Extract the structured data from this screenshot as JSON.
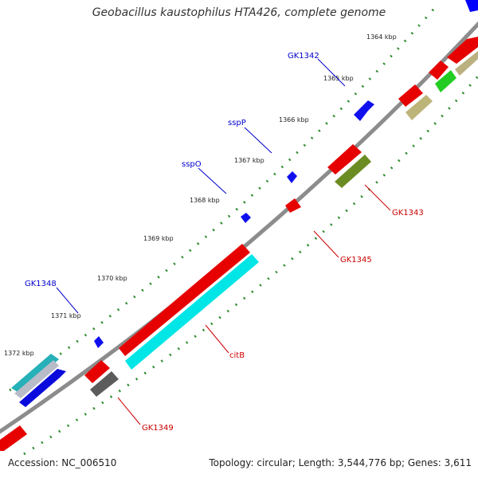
{
  "title": "Geobacillus kaustophilus HTA426, complete genome",
  "footer": {
    "accession": "Accession: NC_006510",
    "genome_info": "Topology: circular; Length: 3,544,776 bp; Genes: 3,611"
  },
  "colors": {
    "backbone": "#8c8c8c",
    "tick_dots": "#2e8b2e",
    "label_forward": "#0000cc",
    "label_reverse": "#cc0000"
  },
  "tick_labels": [
    "1364 kbp",
    "1365 kbp",
    "1366 kbp",
    "1367 kbp",
    "1368 kbp",
    "1369 kbp",
    "1370 kbp",
    "1371 kbp",
    "1372 kbp"
  ],
  "gene_labels": {
    "gk1342": "GK1342",
    "sspp": "sspP",
    "sspo": "sspO",
    "gk1348": "GK1348",
    "gk1343": "GK1343",
    "gk1345": "GK1345",
    "citb": "citB",
    "gk1349": "GK1349"
  },
  "features": [
    {
      "name": "GK1342",
      "strand": "forward",
      "color": "#0000ff"
    },
    {
      "name": "sspP",
      "strand": "forward",
      "color": "#0000ff"
    },
    {
      "name": "sspO",
      "strand": "forward",
      "color": "#0000ff"
    },
    {
      "name": "GK1348",
      "strand": "forward",
      "color": "#0000ff"
    },
    {
      "name": "GK1343",
      "strand": "reverse",
      "color": "#ff0000"
    },
    {
      "name": "GK1345",
      "strand": "reverse",
      "color": "#ff0000"
    },
    {
      "name": "citB",
      "strand": "reverse",
      "color": "#ff0000"
    },
    {
      "name": "GK1349",
      "strand": "reverse",
      "color": "#ff0000"
    }
  ]
}
